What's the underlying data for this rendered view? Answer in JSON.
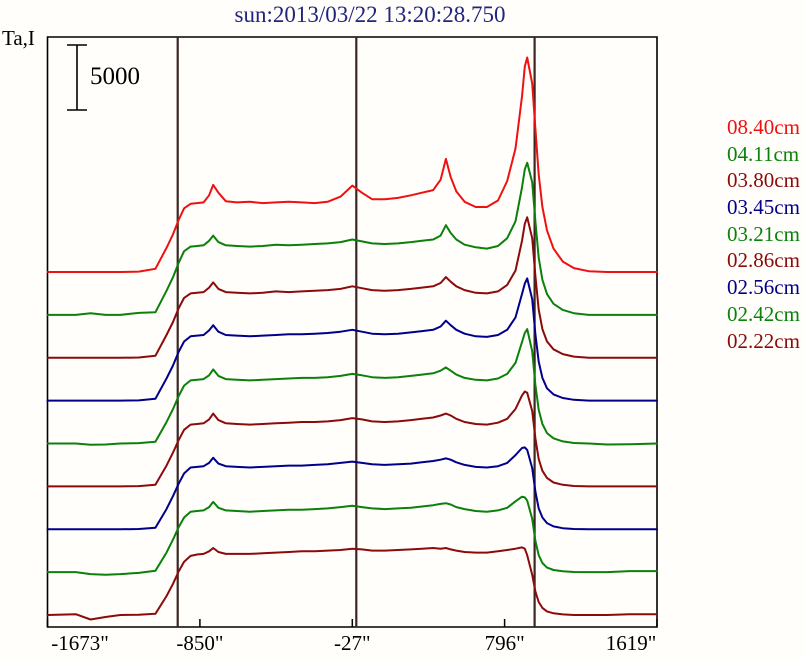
{
  "chart_data": {
    "type": "line",
    "title": "sun:2013/03/22 13:20:28.750",
    "ylabel": "Ta,I",
    "scalebar": {
      "label": "5000",
      "units": 5000
    },
    "x_axis_unit": "arcsec",
    "x_range": [
      -1673,
      1619
    ],
    "x_ticks": {
      "values": [
        -1673,
        -850,
        -27,
        796,
        1619
      ],
      "labels": [
        "-1673\"",
        "-850\"",
        "-27\"",
        "796\"",
        "1619\""
      ]
    },
    "marker_lines_arcsec": [
      -970,
      -5,
      958
    ],
    "legend_position": "right",
    "grid": false,
    "stacked_offset_note": "traces stacked with equal vertical offsets, values are antenna temperature above each trace's own baseline",
    "x": [
      -1673,
      -1520,
      -1440,
      -1360,
      -1280,
      -1180,
      -1090,
      -1030,
      -995,
      -965,
      -935,
      -900,
      -865,
      -830,
      -800,
      -778,
      -750,
      -710,
      -650,
      -580,
      -510,
      -440,
      -370,
      -300,
      -230,
      -160,
      -90,
      -27,
      25,
      80,
      150,
      220,
      290,
      350,
      410,
      450,
      479,
      505,
      535,
      580,
      640,
      700,
      760,
      810,
      855,
      890,
      905,
      918,
      945,
      962,
      980,
      1000,
      1025,
      1060,
      1110,
      1170,
      1250,
      1350,
      1470,
      1619
    ],
    "series": [
      {
        "name": "08.40cm",
        "color": "#ee1111",
        "values": [
          0,
          0,
          0,
          0,
          0,
          30,
          250,
          1850,
          2900,
          4000,
          4900,
          5250,
          5300,
          5350,
          5900,
          6700,
          6100,
          5450,
          5350,
          5400,
          5300,
          5350,
          5400,
          5350,
          5300,
          5400,
          5800,
          6650,
          6100,
          5600,
          5600,
          5700,
          5900,
          6100,
          6300,
          7100,
          8700,
          7300,
          6200,
          5400,
          5000,
          5000,
          5500,
          7000,
          9500,
          13500,
          15800,
          16500,
          14500,
          11000,
          7500,
          5000,
          3200,
          1800,
          800,
          300,
          60,
          0,
          0,
          0
        ]
      },
      {
        "name": "04.11cm",
        "color": "#0b800b",
        "values": [
          0,
          0,
          120,
          0,
          0,
          150,
          200,
          1850,
          2900,
          4000,
          4900,
          5250,
          5300,
          5350,
          5700,
          6100,
          5600,
          5350,
          5300,
          5250,
          5300,
          5400,
          5350,
          5400,
          5450,
          5500,
          5600,
          5800,
          5650,
          5500,
          5450,
          5500,
          5600,
          5700,
          5800,
          6100,
          6900,
          6300,
          5800,
          5400,
          5200,
          5100,
          5300,
          5900,
          7200,
          9800,
          11200,
          11700,
          10200,
          7200,
          4400,
          2700,
          1600,
          850,
          380,
          130,
          0,
          0,
          0,
          0
        ]
      },
      {
        "name": "03.80cm",
        "color": "#8b0b0b",
        "values": [
          0,
          0,
          0,
          0,
          0,
          20,
          150,
          1750,
          2750,
          3800,
          4600,
          4950,
          5000,
          5050,
          5400,
          5800,
          5300,
          5050,
          5000,
          4950,
          5000,
          5100,
          5050,
          5100,
          5150,
          5200,
          5300,
          5500,
          5350,
          5200,
          5150,
          5200,
          5300,
          5400,
          5500,
          5750,
          6200,
          5850,
          5500,
          5200,
          5000,
          4950,
          5100,
          5600,
          6700,
          9000,
          10300,
          10800,
          9200,
          6300,
          3700,
          2200,
          1250,
          650,
          280,
          90,
          0,
          0,
          0,
          0
        ]
      },
      {
        "name": "03.45cm",
        "color": "#00008b",
        "values": [
          0,
          0,
          0,
          0,
          0,
          20,
          140,
          1700,
          2700,
          3750,
          4550,
          4950,
          5000,
          5050,
          5400,
          5800,
          5300,
          5050,
          5000,
          4950,
          5000,
          5050,
          5100,
          5100,
          5150,
          5200,
          5300,
          5450,
          5300,
          5150,
          5100,
          5150,
          5250,
          5350,
          5450,
          5700,
          6150,
          5800,
          5450,
          5150,
          4950,
          4900,
          5050,
          5450,
          6400,
          8200,
          9000,
          9400,
          7800,
          5100,
          3000,
          1750,
          950,
          480,
          200,
          60,
          0,
          0,
          0,
          0
        ]
      },
      {
        "name": "03.21cm",
        "color": "#0b800b",
        "values": [
          0,
          0,
          -100,
          -80,
          0,
          30,
          130,
          1650,
          2650,
          3650,
          4450,
          4850,
          4900,
          4950,
          5250,
          5700,
          5200,
          4950,
          4900,
          4850,
          4900,
          4950,
          5000,
          5050,
          5050,
          5100,
          5200,
          5350,
          5250,
          5100,
          5050,
          5100,
          5200,
          5300,
          5400,
          5600,
          5850,
          5600,
          5300,
          5050,
          4900,
          4850,
          5000,
          5350,
          6200,
          7800,
          8500,
          8800,
          7100,
          4500,
          2600,
          1500,
          800,
          400,
          160,
          40,
          0,
          -80,
          -60,
          0
        ]
      },
      {
        "name": "02.86cm",
        "color": "#8b0b0b",
        "values": [
          0,
          0,
          0,
          0,
          0,
          20,
          120,
          1600,
          2600,
          3550,
          4350,
          4750,
          4800,
          4850,
          5150,
          5600,
          5100,
          4850,
          4800,
          4750,
          4800,
          4850,
          4900,
          4950,
          4950,
          5000,
          5100,
          5250,
          5150,
          5000,
          4950,
          5000,
          5100,
          5200,
          5300,
          5450,
          5600,
          5450,
          5200,
          4950,
          4800,
          4750,
          4900,
          5200,
          5950,
          7000,
          7300,
          7200,
          5800,
          3700,
          2100,
          1200,
          650,
          300,
          120,
          30,
          0,
          0,
          0,
          0
        ]
      },
      {
        "name": "02.56cm",
        "color": "#00008b",
        "values": [
          0,
          0,
          0,
          0,
          0,
          20,
          110,
          1550,
          2550,
          3500,
          4300,
          4750,
          4800,
          4850,
          5100,
          5500,
          5050,
          4850,
          4800,
          4750,
          4800,
          4850,
          4900,
          4900,
          4950,
          5000,
          5100,
          5200,
          5100,
          5000,
          4950,
          5000,
          5050,
          5150,
          5250,
          5350,
          5450,
          5350,
          5150,
          4950,
          4800,
          4750,
          4850,
          5100,
          5700,
          6250,
          6300,
          6100,
          4700,
          2900,
          1600,
          900,
          470,
          220,
          80,
          20,
          0,
          0,
          0,
          0
        ]
      },
      {
        "name": "02.42cm",
        "color": "#0b800b",
        "values": [
          0,
          0,
          -150,
          -200,
          -150,
          -60,
          100,
          1500,
          2500,
          3450,
          4200,
          4650,
          4700,
          4750,
          5000,
          5400,
          4950,
          4750,
          4700,
          4650,
          4700,
          4750,
          4800,
          4800,
          4850,
          4900,
          5000,
          5100,
          5000,
          4900,
          4850,
          4900,
          4950,
          5050,
          5150,
          5250,
          5300,
          5200,
          5000,
          4850,
          4700,
          4650,
          4750,
          4950,
          5450,
          5800,
          5750,
          5500,
          4100,
          2400,
          1300,
          700,
          350,
          160,
          60,
          10,
          0,
          0,
          80,
          80
        ]
      },
      {
        "name": "02.22cm",
        "color": "#8b0b0b",
        "values": [
          0,
          60,
          -350,
          -150,
          0,
          20,
          90,
          1450,
          2400,
          3350,
          4100,
          4550,
          4650,
          4700,
          4900,
          5150,
          4850,
          4700,
          4700,
          4700,
          4750,
          4800,
          4850,
          4900,
          4900,
          4950,
          5000,
          5100,
          5050,
          4950,
          4950,
          5000,
          5050,
          5100,
          5150,
          5100,
          5150,
          5050,
          4950,
          4850,
          4800,
          4800,
          4900,
          5000,
          5100,
          5200,
          5100,
          4600,
          3100,
          1800,
          1000,
          550,
          280,
          130,
          50,
          0,
          0,
          0,
          60,
          60
        ]
      }
    ]
  }
}
